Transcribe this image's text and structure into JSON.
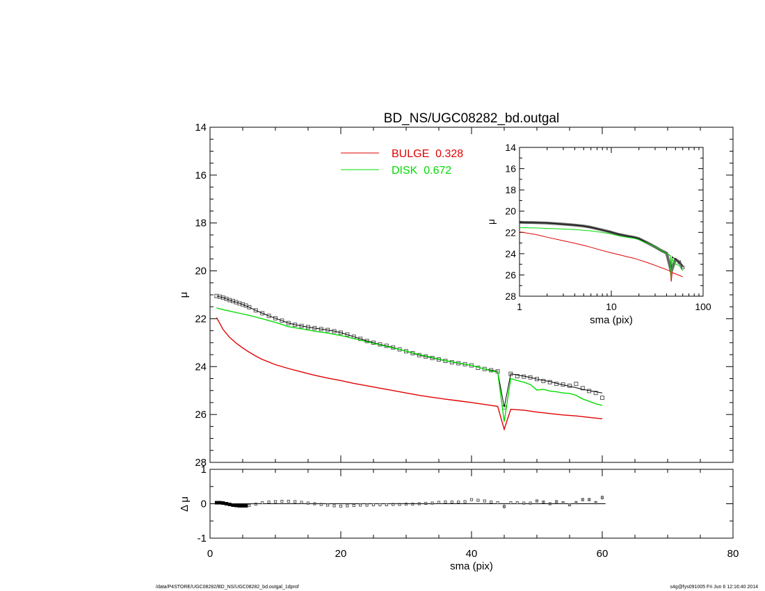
{
  "title": "BD_NS/UGC08282_bd.outgal",
  "footer_left": "/data/P4STORE/UGC08282/BD_NS/UGC08282_bd.outgal_1dprof",
  "footer_right": "s4g@fys091005  Fri Jun  6 12:16:40 2014",
  "colors": {
    "bulge": "#e00000",
    "disk": "#00dd00",
    "total": "#000000",
    "data": "#555555"
  },
  "legend": [
    {
      "label": "BULGE  0.328",
      "color": "#e00000"
    },
    {
      "label": "DISK  0.672",
      "color": "#00dd00"
    }
  ],
  "chart_data": [
    {
      "type": "line",
      "title": "BD_NS/UGC08282_bd.outgal",
      "xlabel": "",
      "ylabel": "μ",
      "xlim": [
        0,
        80
      ],
      "ylim": [
        28,
        14
      ],
      "x_ticks": [
        0,
        20,
        40,
        60,
        80
      ],
      "y_ticks": [
        "14",
        "16",
        "18",
        "20",
        "22",
        "24",
        "26",
        "28"
      ],
      "legend_position": "top-center",
      "series": [
        {
          "name": "data",
          "style": "squares",
          "x": [
            1,
            1.5,
            2,
            2.5,
            3,
            3.5,
            4,
            4.5,
            5,
            5.5,
            6,
            7,
            8,
            9,
            10,
            11,
            12,
            13,
            14,
            15,
            16,
            17,
            18,
            19,
            20,
            21,
            22,
            23,
            24,
            25,
            26,
            27,
            28,
            29,
            30,
            31,
            32,
            33,
            34,
            35,
            36,
            37,
            38,
            39,
            40,
            41,
            42,
            43,
            44,
            45,
            46,
            47,
            48,
            49,
            50,
            51,
            52,
            53,
            54,
            55,
            56,
            57,
            58,
            59,
            60
          ],
          "y": [
            21.05,
            21.08,
            21.12,
            21.17,
            21.22,
            21.26,
            21.31,
            21.36,
            21.4,
            21.45,
            21.52,
            21.65,
            21.77,
            21.88,
            21.98,
            22.08,
            22.18,
            22.25,
            22.3,
            22.35,
            22.39,
            22.43,
            22.47,
            22.52,
            22.58,
            22.66,
            22.75,
            22.84,
            22.93,
            23.0,
            23.07,
            23.13,
            23.2,
            23.28,
            23.36,
            23.44,
            23.52,
            23.58,
            23.64,
            23.7,
            23.76,
            23.82,
            23.86,
            23.9,
            23.95,
            24.05,
            24.1,
            24.15,
            24.2,
            25.7,
            24.3,
            24.4,
            24.42,
            24.45,
            24.52,
            24.6,
            24.65,
            24.72,
            24.75,
            24.8,
            24.72,
            24.9,
            25.02,
            25.1,
            25.3
          ]
        },
        {
          "name": "",
          "color": "#000000",
          "x": [
            1,
            2,
            3,
            4,
            5,
            6,
            7,
            8,
            9,
            10,
            11,
            12,
            13,
            14,
            15,
            16,
            17,
            18,
            19,
            20,
            22,
            24,
            26,
            28,
            30,
            32,
            34,
            36,
            38,
            40,
            42,
            43,
            44,
            45,
            46,
            47,
            48,
            49,
            50,
            51,
            52,
            53,
            54,
            55,
            56,
            57,
            58,
            59,
            60
          ],
          "y": [
            21.05,
            21.12,
            21.22,
            21.31,
            21.4,
            21.52,
            21.65,
            21.77,
            21.88,
            21.98,
            22.08,
            22.18,
            22.25,
            22.3,
            22.35,
            22.39,
            22.43,
            22.47,
            22.52,
            22.58,
            22.75,
            22.93,
            23.07,
            23.2,
            23.36,
            23.52,
            23.64,
            23.76,
            23.86,
            23.95,
            24.1,
            24.15,
            24.2,
            25.7,
            24.3,
            24.35,
            24.4,
            24.45,
            24.52,
            24.58,
            24.62,
            24.7,
            24.76,
            24.82,
            24.88,
            24.95,
            25.0,
            25.05,
            25.1
          ]
        },
        {
          "name": "BULGE",
          "color": "#e00000",
          "x": [
            1,
            2,
            3,
            4,
            5,
            6,
            7,
            8,
            10,
            12,
            14,
            16,
            18,
            20,
            22,
            24,
            26,
            28,
            30,
            32,
            34,
            36,
            38,
            40,
            42,
            43,
            44,
            45,
            46,
            47,
            48,
            49,
            50,
            51,
            52,
            54,
            56,
            58,
            60
          ],
          "y": [
            21.95,
            22.45,
            22.78,
            23.02,
            23.22,
            23.4,
            23.56,
            23.7,
            23.92,
            24.08,
            24.22,
            24.36,
            24.48,
            24.58,
            24.7,
            24.8,
            24.9,
            25.0,
            25.1,
            25.2,
            25.28,
            25.36,
            25.43,
            25.5,
            25.58,
            25.62,
            25.66,
            26.62,
            25.78,
            25.8,
            25.82,
            25.86,
            25.9,
            25.93,
            25.96,
            26.02,
            26.06,
            26.12,
            26.18
          ]
        },
        {
          "name": "DISK",
          "color": "#00dd00",
          "x": [
            1,
            2,
            3,
            4,
            5,
            6,
            7,
            8,
            9,
            10,
            11,
            12,
            14,
            16,
            18,
            20,
            22,
            24,
            26,
            28,
            30,
            32,
            34,
            36,
            38,
            40,
            42,
            43,
            44,
            45,
            46,
            47,
            48,
            49,
            50,
            51,
            52,
            53,
            54,
            55,
            56,
            57,
            58,
            59,
            60
          ],
          "y": [
            21.55,
            21.62,
            21.68,
            21.74,
            21.8,
            21.86,
            21.93,
            22.0,
            22.08,
            22.15,
            22.24,
            22.33,
            22.42,
            22.52,
            22.6,
            22.7,
            22.83,
            22.96,
            23.09,
            23.22,
            23.35,
            23.5,
            23.62,
            23.75,
            23.85,
            23.95,
            24.1,
            24.18,
            24.22,
            26.3,
            24.5,
            24.58,
            24.65,
            24.75,
            24.98,
            24.95,
            25.02,
            25.05,
            25.1,
            25.12,
            25.2,
            25.35,
            25.45,
            25.55,
            25.62
          ]
        }
      ]
    },
    {
      "type": "scatter",
      "title": "",
      "xlabel": "sma (pix)",
      "ylabel": "Δ μ",
      "xlim": [
        0,
        80
      ],
      "ylim": [
        -1,
        1
      ],
      "x_ticks": [
        "0",
        "20",
        "40",
        "60",
        "80"
      ],
      "y_ticks": [
        "1",
        "0",
        "-1"
      ],
      "series": [
        {
          "name": "residual",
          "x": [
            1,
            1.5,
            2,
            2.5,
            3,
            3.5,
            4,
            4.5,
            5,
            5.5,
            6,
            7,
            8,
            9,
            10,
            11,
            12,
            13,
            14,
            15,
            16,
            17,
            18,
            19,
            20,
            21,
            22,
            23,
            24,
            25,
            26,
            27,
            28,
            29,
            30,
            31,
            32,
            33,
            34,
            35,
            36,
            37,
            38,
            39,
            40,
            41,
            42,
            43,
            44,
            45,
            46,
            47,
            48,
            49,
            50,
            51,
            52,
            53,
            54,
            55,
            56,
            57,
            58,
            59,
            60
          ],
          "y": [
            0.03,
            0.03,
            0.02,
            0.0,
            -0.02,
            -0.04,
            -0.05,
            -0.06,
            -0.06,
            -0.06,
            -0.05,
            -0.01,
            0.03,
            0.05,
            0.06,
            0.07,
            0.07,
            0.06,
            0.04,
            0.02,
            0.0,
            -0.02,
            -0.04,
            -0.06,
            -0.07,
            -0.06,
            -0.05,
            -0.04,
            -0.04,
            -0.03,
            -0.03,
            -0.03,
            -0.02,
            -0.02,
            -0.01,
            -0.01,
            0.0,
            0.01,
            0.02,
            0.04,
            0.05,
            0.05,
            0.05,
            0.06,
            0.12,
            0.1,
            0.08,
            0.05,
            0.03,
            -0.08,
            0.03,
            0.03,
            0.02,
            0.02,
            0.08,
            0.05,
            0.0,
            0.06,
            0.03,
            -0.03,
            0.03,
            0.12,
            0.12,
            0.03,
            0.18
          ],
          "err": [
            0.01,
            0.01,
            0.01,
            0.01,
            0.01,
            0.01,
            0.01,
            0.01,
            0.01,
            0.01,
            0.01,
            0.01,
            0.01,
            0.01,
            0.01,
            0.01,
            0.01,
            0.01,
            0.01,
            0.01,
            0.01,
            0.01,
            0.01,
            0.01,
            0.01,
            0.01,
            0.01,
            0.01,
            0.01,
            0.01,
            0.01,
            0.01,
            0.01,
            0.01,
            0.01,
            0.01,
            0.01,
            0.01,
            0.01,
            0.01,
            0.01,
            0.01,
            0.01,
            0.01,
            0.02,
            0.02,
            0.02,
            0.02,
            0.02,
            0.06,
            0.03,
            0.03,
            0.03,
            0.03,
            0.04,
            0.04,
            0.04,
            0.04,
            0.04,
            0.04,
            0.05,
            0.05,
            0.05,
            0.05,
            0.06
          ]
        }
      ]
    },
    {
      "type": "line",
      "title": "",
      "xlabel": "sma (pix)",
      "ylabel": "μ",
      "x_scale": "log",
      "xlim": [
        1,
        100
      ],
      "ylim": [
        28,
        14
      ],
      "x_ticks": [
        "1",
        "10",
        "100"
      ],
      "y_ticks": [
        "14",
        "16",
        "18",
        "20",
        "22",
        "24",
        "26",
        "28"
      ],
      "series": [
        {
          "name": "data",
          "x": [
            1,
            1.5,
            2,
            3,
            4,
            5,
            6,
            8,
            10,
            12,
            15,
            18,
            20,
            25,
            30,
            35,
            40,
            45,
            50,
            55,
            60
          ],
          "y": [
            21.05,
            21.08,
            21.12,
            21.22,
            21.31,
            21.4,
            21.52,
            21.77,
            21.98,
            22.18,
            22.35,
            22.47,
            22.58,
            23.0,
            23.36,
            23.7,
            23.95,
            25.7,
            24.52,
            24.8,
            25.3
          ]
        },
        {
          "name": "",
          "color": "#000000",
          "x": [
            1,
            1.5,
            2,
            3,
            4,
            5,
            6,
            8,
            10,
            12,
            15,
            18,
            20,
            25,
            30,
            35,
            40,
            44,
            45,
            46,
            50,
            55,
            60
          ],
          "y": [
            21.05,
            21.08,
            21.12,
            21.22,
            21.31,
            21.4,
            21.52,
            21.77,
            21.98,
            22.18,
            22.35,
            22.47,
            22.58,
            23.0,
            23.36,
            23.7,
            23.95,
            24.2,
            25.7,
            24.3,
            24.52,
            24.82,
            25.1
          ]
        },
        {
          "name": "BULGE",
          "color": "#e00000",
          "x": [
            1,
            1.5,
            2,
            3,
            4,
            5,
            6,
            8,
            10,
            12,
            15,
            18,
            20,
            25,
            30,
            35,
            40,
            44,
            45,
            46,
            50,
            55,
            60
          ],
          "y": [
            21.95,
            22.2,
            22.45,
            22.78,
            23.02,
            23.22,
            23.4,
            23.7,
            23.92,
            24.08,
            24.3,
            24.45,
            24.58,
            24.85,
            25.1,
            25.32,
            25.5,
            25.66,
            26.62,
            25.78,
            25.9,
            26.04,
            26.18
          ]
        },
        {
          "name": "DISK",
          "color": "#00dd00",
          "x": [
            1,
            1.5,
            2,
            3,
            4,
            5,
            6,
            8,
            10,
            12,
            15,
            18,
            20,
            25,
            30,
            35,
            40,
            44,
            45,
            46,
            50,
            55,
            60
          ],
          "y": [
            21.55,
            21.58,
            21.62,
            21.68,
            21.74,
            21.8,
            21.86,
            22.0,
            22.15,
            22.33,
            22.47,
            22.56,
            22.7,
            23.02,
            23.35,
            23.7,
            23.95,
            24.22,
            26.3,
            24.5,
            24.98,
            25.12,
            25.62
          ]
        }
      ]
    }
  ]
}
